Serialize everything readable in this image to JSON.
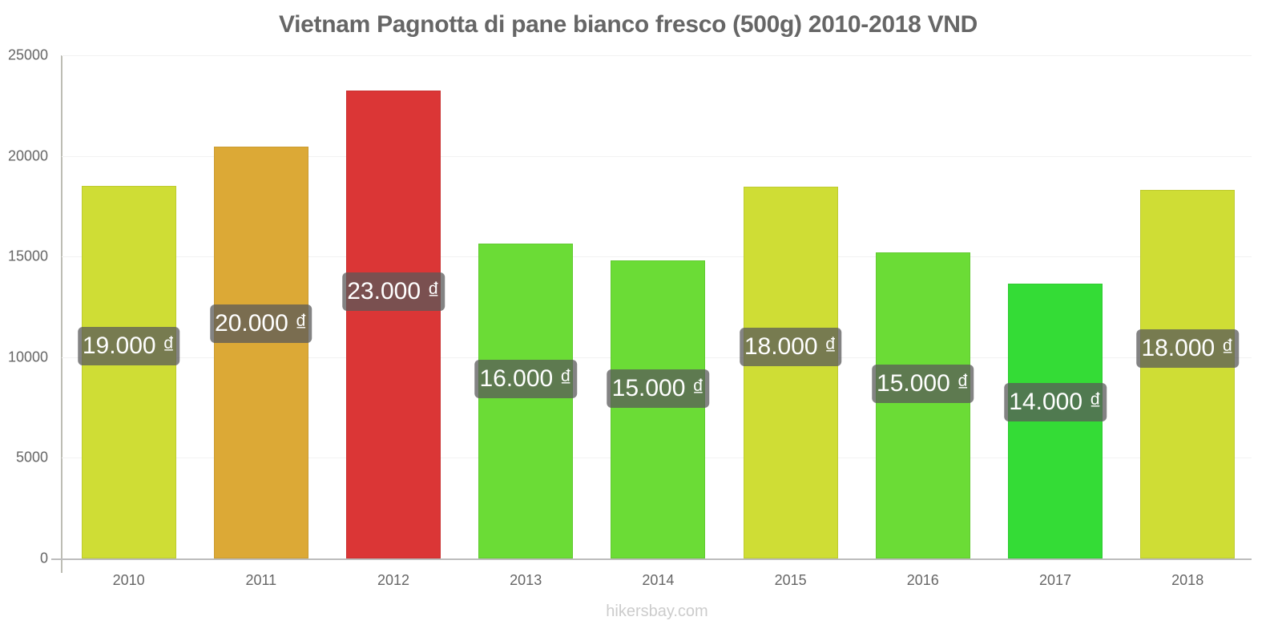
{
  "chart_data": {
    "type": "bar",
    "title": "Vietnam Pagnotta di pane bianco fresco (500g) 2010-2018 VND",
    "xlabel": "",
    "ylabel": "",
    "ylim": [
      0,
      25000
    ],
    "yticks": [
      0,
      5000,
      10000,
      15000,
      20000,
      25000
    ],
    "grid": true,
    "legend": null,
    "categories": [
      "2010",
      "2011",
      "2012",
      "2013",
      "2014",
      "2015",
      "2016",
      "2017",
      "2018"
    ],
    "values": [
      18510,
      20460,
      23250,
      15640,
      14810,
      18470,
      15210,
      13650,
      18310
    ],
    "data_labels": [
      "19.000 ₫",
      "20.000 ₫",
      "23.000 ₫",
      "16.000 ₫",
      "15.000 ₫",
      "18.000 ₫",
      "15.000 ₫",
      "14.000 ₫",
      "18.000 ₫"
    ],
    "bar_colors": [
      "#cfdd35",
      "#dca936",
      "#db3636",
      "#6bdc36",
      "#6bdc36",
      "#cfdd35",
      "#6bdc36",
      "#34dc36",
      "#cfdd35"
    ]
  },
  "header": {
    "title": "Vietnam Pagnotta di pane bianco fresco (500g) 2010-2018 VND"
  },
  "y_axis": {
    "ticks": [
      "0",
      "5000",
      "10000",
      "15000",
      "20000",
      "25000"
    ]
  },
  "bars": [
    {
      "year": "2010",
      "label": "19.000 ₫",
      "color": "#cfdd35"
    },
    {
      "year": "2011",
      "label": "20.000 ₫",
      "color": "#dca936"
    },
    {
      "year": "2012",
      "label": "23.000 ₫",
      "color": "#db3636"
    },
    {
      "year": "2013",
      "label": "16.000 ₫",
      "color": "#6bdc36"
    },
    {
      "year": "2014",
      "label": "15.000 ₫",
      "color": "#6bdc36"
    },
    {
      "year": "2015",
      "label": "18.000 ₫",
      "color": "#cfdd35"
    },
    {
      "year": "2016",
      "label": "15.000 ₫",
      "color": "#6bdc36"
    },
    {
      "year": "2017",
      "label": "14.000 ₫",
      "color": "#34dc36"
    },
    {
      "year": "2018",
      "label": "18.000 ₫",
      "color": "#cfdd35"
    }
  ],
  "footer": {
    "watermark": "hikersbay.com"
  }
}
